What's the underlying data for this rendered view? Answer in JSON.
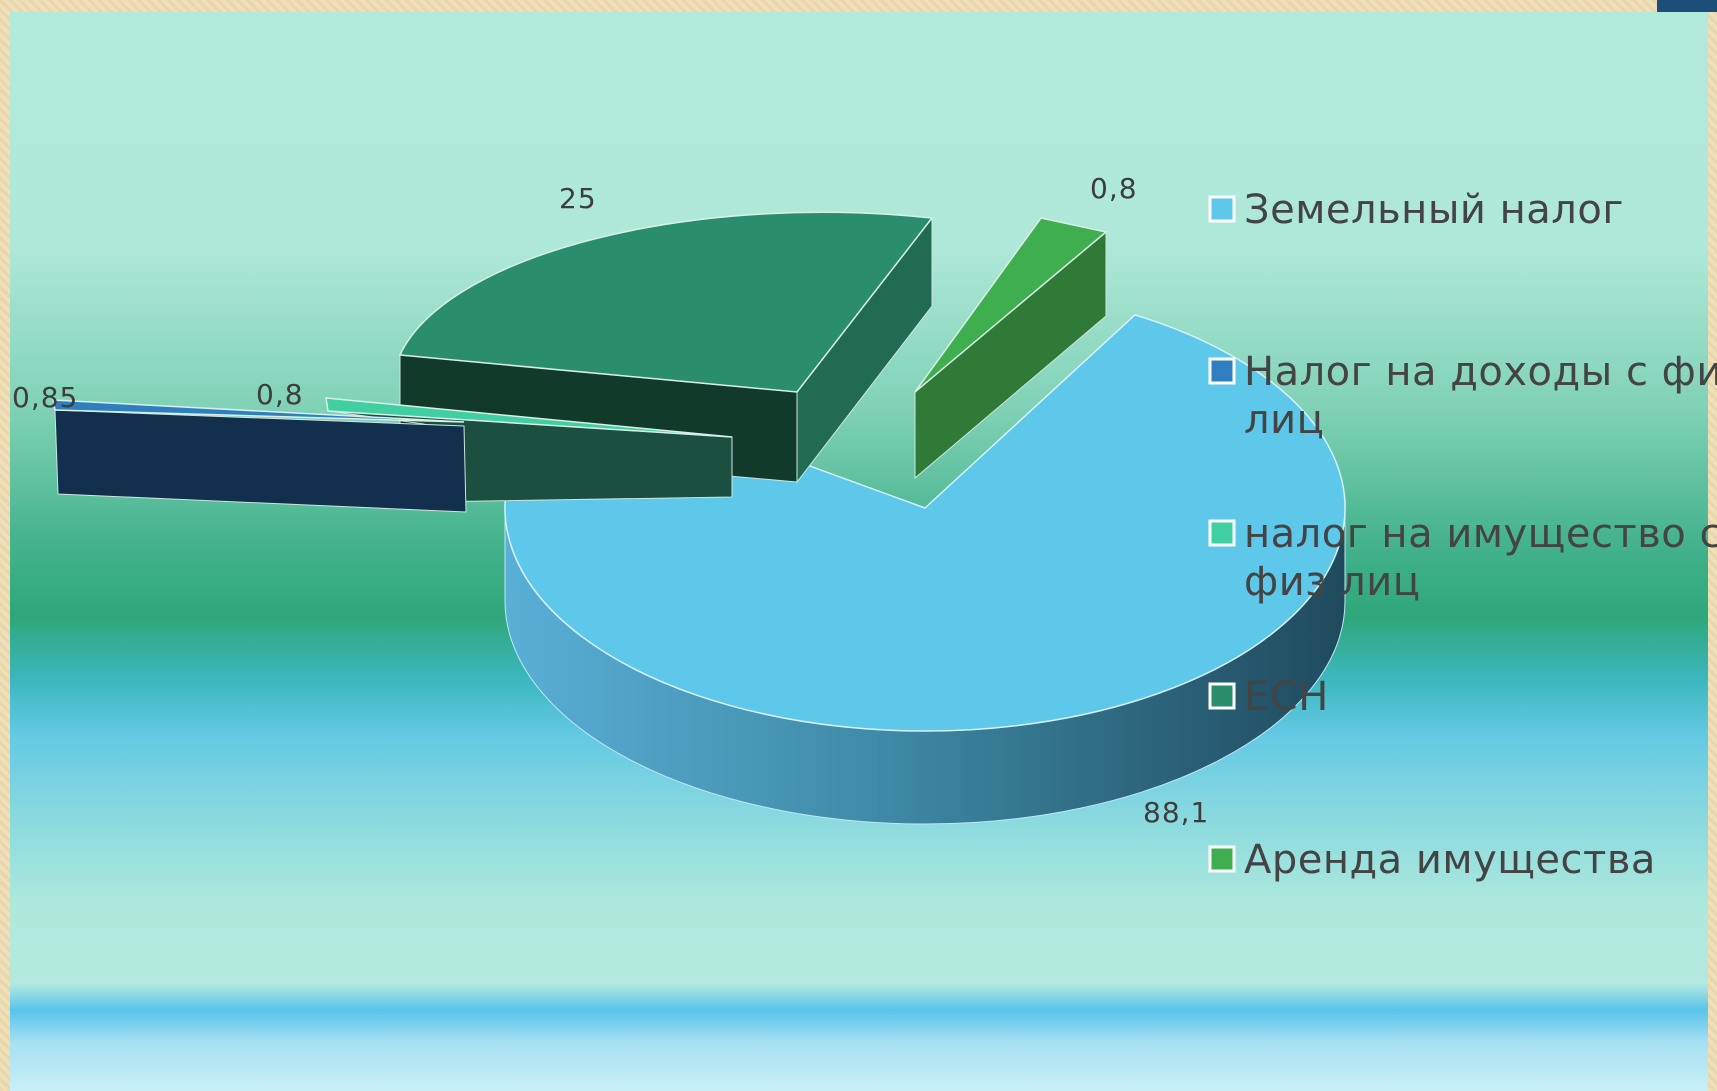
{
  "chart_data": {
    "type": "pie",
    "style": "3d-exploded",
    "categories": [
      "Земельный налог",
      "Налог на доходы с физ лиц",
      "налог на имущество с физ лиц",
      "ЕСН",
      "Аренда имущества"
    ],
    "values": [
      88.1,
      0.85,
      0.8,
      25,
      0.8
    ],
    "value_labels": [
      "88,1",
      "0,85",
      "0,8",
      "25",
      "0,8"
    ],
    "colors": {
      "Земельный налог": "#5ec8ea",
      "Налог на доходы с физ лиц": "#2f7fc0",
      "налог на имущество с физ лиц": "#3fcfa0",
      "ЕСН": "#2a8e6c",
      "Аренда имущества": "#3fae4e"
    },
    "legend_position": "right",
    "legend_lines": [
      [
        "Земельный налог"
      ],
      [
        "Налог на доходы с физ",
        "лиц"
      ],
      [
        "налог на имущество с",
        "физ лиц"
      ],
      [
        "ЕСН"
      ],
      [
        "Аренда имущества"
      ]
    ]
  }
}
